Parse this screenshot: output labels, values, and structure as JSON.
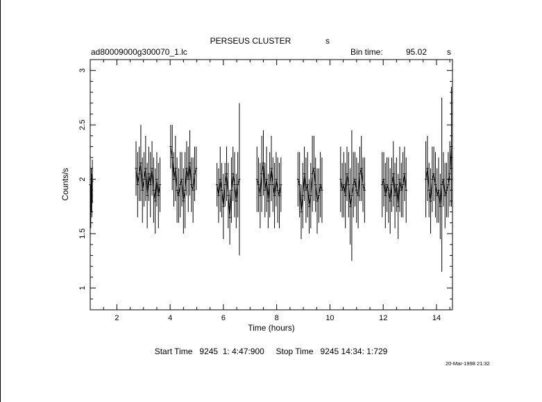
{
  "chart_data": {
    "type": "line",
    "title": "PERSEUS CLUSTER",
    "title_suffix": "s",
    "file_label": "ad80009000g300070_1.lc",
    "bin_time_label": "Bin time:",
    "bin_time_value": "95.02",
    "bin_time_unit": "s",
    "xlabel": "Time (hours)",
    "ylabel": "Counts/s",
    "xlim": [
      1.0,
      14.6
    ],
    "ylim": [
      0.8,
      3.1
    ],
    "xticks": [
      "2",
      "4",
      "6",
      "8",
      "10",
      "12",
      "14"
    ],
    "yticks": [
      "1",
      "1.5",
      "2",
      "2.5",
      "3"
    ],
    "series": [
      {
        "x": [
          1.0,
          1.02,
          1.04,
          1.06,
          1.08,
          2.72,
          2.78,
          2.84,
          2.9,
          2.96,
          3.02,
          3.08,
          3.14,
          3.2,
          3.26,
          3.32,
          3.38,
          3.44,
          3.5,
          3.56,
          3.62,
          4.02,
          4.08,
          4.14,
          4.2,
          4.26,
          4.32,
          4.38,
          4.44,
          4.5,
          4.56,
          4.62,
          4.68,
          4.74,
          4.8,
          4.86,
          4.92,
          4.98,
          5.76,
          5.82,
          5.88,
          5.94,
          6.0,
          6.06,
          6.12,
          6.18,
          6.24,
          6.3,
          6.36,
          6.42,
          6.48,
          6.54,
          6.6,
          7.26,
          7.32,
          7.38,
          7.44,
          7.5,
          7.56,
          7.62,
          7.68,
          7.74,
          7.8,
          7.86,
          7.92,
          7.98,
          8.04,
          8.1,
          8.16,
          8.8,
          8.86,
          8.92,
          8.98,
          9.04,
          9.1,
          9.16,
          9.22,
          9.28,
          9.34,
          9.4,
          9.46,
          9.52,
          9.58,
          9.64,
          9.7,
          10.4,
          10.46,
          10.52,
          10.58,
          10.64,
          10.7,
          10.76,
          10.82,
          10.88,
          10.94,
          11.0,
          11.06,
          11.12,
          11.18,
          11.24,
          11.3,
          11.96,
          12.02,
          12.08,
          12.14,
          12.2,
          12.26,
          12.32,
          12.38,
          12.44,
          12.5,
          12.56,
          12.62,
          12.68,
          12.74,
          12.8,
          12.86,
          13.6,
          13.66,
          13.72,
          13.78,
          13.84,
          13.9,
          13.96,
          14.02,
          14.08,
          14.14,
          14.2,
          14.26,
          14.32,
          14.38,
          14.44,
          14.5,
          14.56
        ],
        "y": [
          1.95,
          1.75,
          1.9,
          1.85,
          1.98,
          2.1,
          1.95,
          2.05,
          2.15,
          1.9,
          2.0,
          2.1,
          1.85,
          2.05,
          1.95,
          2.1,
          1.9,
          1.8,
          2.0,
          1.85,
          1.95,
          2.3,
          2.2,
          2.0,
          2.1,
          1.9,
          1.85,
          1.95,
          2.0,
          1.8,
          1.9,
          2.1,
          2.0,
          2.15,
          1.95,
          1.9,
          2.05,
          2.1,
          1.95,
          1.85,
          2.0,
          1.9,
          1.75,
          1.95,
          2.05,
          1.85,
          1.65,
          1.9,
          2.05,
          1.95,
          1.8,
          1.95,
          2.0,
          2.0,
          1.95,
          1.85,
          2.05,
          2.15,
          1.9,
          2.0,
          1.8,
          1.95,
          2.1,
          1.95,
          1.85,
          2.0,
          1.9,
          1.85,
          1.95,
          2.0,
          1.95,
          1.7,
          1.85,
          2.05,
          1.9,
          1.95,
          1.75,
          1.85,
          2.05,
          2.1,
          1.95,
          1.8,
          1.85,
          1.95,
          1.9,
          2.0,
          1.9,
          1.95,
          1.85,
          2.05,
          1.95,
          1.75,
          1.85,
          1.95,
          2.0,
          1.9,
          1.85,
          2.05,
          2.1,
          1.95,
          1.9,
          1.95,
          2.0,
          1.85,
          1.95,
          1.9,
          1.8,
          1.95,
          2.05,
          1.85,
          1.95,
          1.75,
          2.0,
          1.9,
          1.95,
          2.05,
          1.9,
          2.0,
          2.1,
          1.9,
          1.8,
          2.0,
          2.05,
          1.95,
          1.85,
          1.9,
          1.75,
          1.95,
          2.0,
          1.85,
          1.9,
          1.95,
          2.05,
          2.3
        ],
        "err": [
          0.2,
          0.2,
          0.2,
          0.2,
          0.2,
          0.25,
          0.3,
          0.25,
          0.35,
          0.3,
          0.25,
          0.3,
          0.3,
          0.25,
          0.3,
          0.25,
          0.3,
          0.3,
          0.25,
          0.3,
          0.25,
          0.2,
          0.3,
          0.25,
          0.3,
          0.3,
          0.25,
          0.3,
          0.25,
          0.3,
          0.35,
          0.25,
          0.3,
          0.3,
          0.25,
          0.3,
          0.25,
          0.2,
          0.2,
          0.25,
          0.3,
          0.25,
          0.3,
          0.2,
          0.25,
          0.3,
          0.25,
          0.3,
          0.25,
          0.3,
          0.25,
          0.3,
          0.7,
          0.3,
          0.25,
          0.3,
          0.35,
          0.3,
          0.25,
          0.3,
          0.25,
          0.3,
          0.3,
          0.25,
          0.3,
          0.25,
          0.3,
          0.3,
          0.25,
          0.25,
          0.3,
          0.25,
          0.3,
          0.25,
          0.3,
          0.3,
          0.25,
          0.3,
          0.35,
          0.3,
          0.25,
          0.3,
          0.25,
          0.3,
          0.3,
          0.3,
          0.25,
          0.3,
          0.3,
          0.25,
          0.3,
          0.35,
          0.6,
          0.3,
          0.25,
          0.3,
          0.3,
          0.25,
          0.3,
          0.25,
          0.3,
          0.3,
          0.25,
          0.3,
          0.25,
          0.3,
          0.3,
          0.25,
          0.3,
          0.3,
          0.25,
          0.3,
          0.3,
          0.25,
          0.3,
          0.25,
          0.3,
          0.35,
          0.3,
          0.25,
          0.3,
          0.3,
          0.25,
          0.3,
          0.25,
          0.3,
          0.3,
          0.8,
          0.25,
          0.3,
          0.25,
          0.3,
          0.3,
          0.55
        ]
      }
    ]
  },
  "footer": {
    "start_label": "Start Time",
    "start_value": "9245  1: 4:47:900",
    "stop_label": "Stop Time",
    "stop_value": "9245 14:34: 1:729",
    "stamp": "20-Mar-1998 21:32"
  }
}
